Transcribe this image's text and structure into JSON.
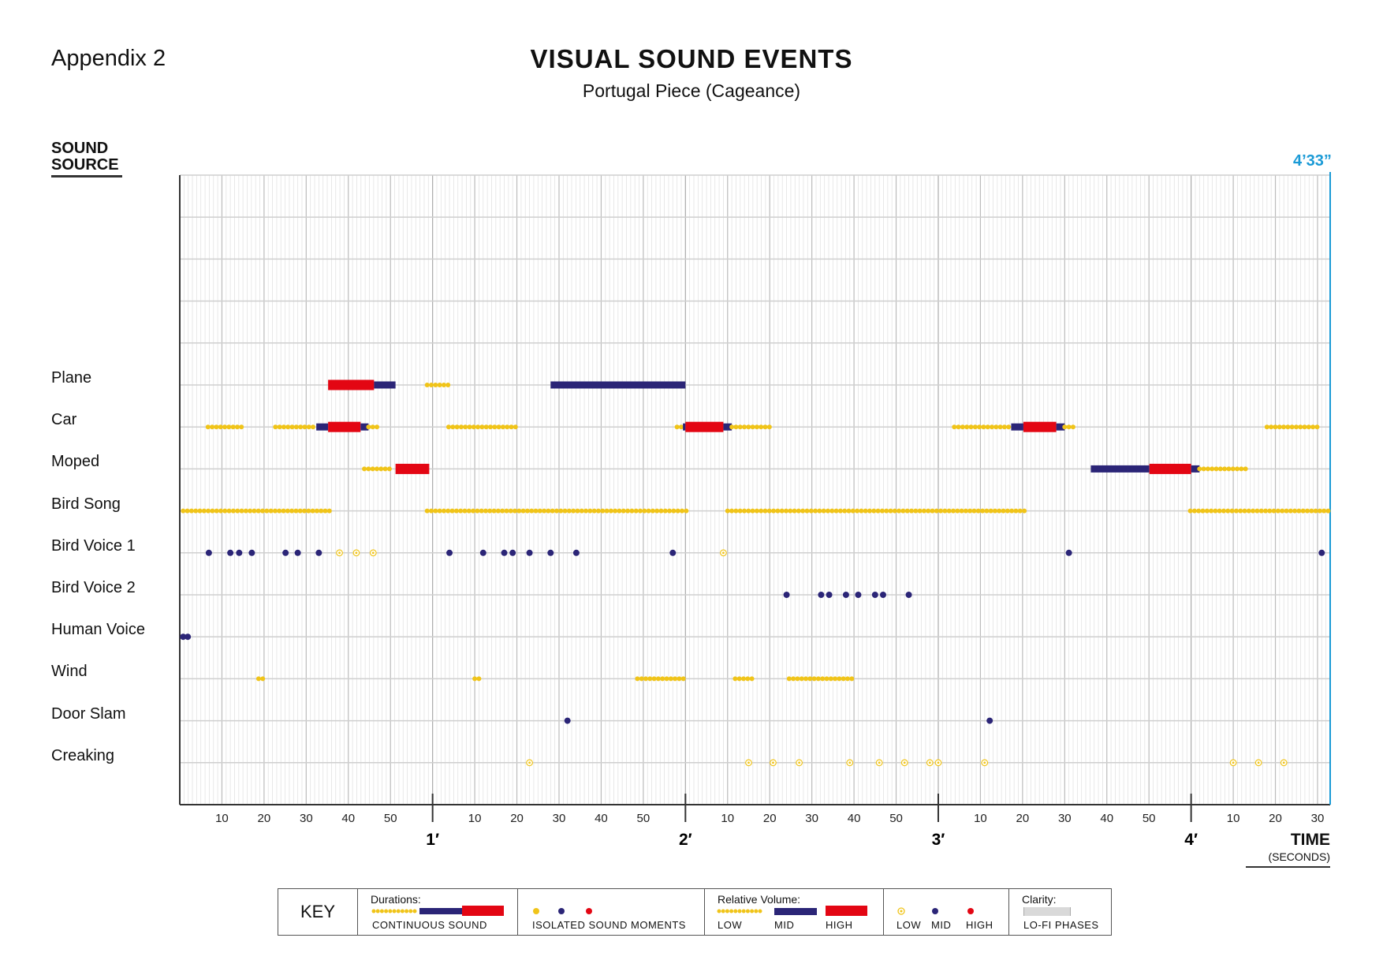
{
  "header": {
    "appendix": "Appendix 2",
    "title": "VISUAL SOUND EVENTS",
    "subtitle": "Portugal Piece (Cageance)"
  },
  "chart_data": {
    "type": "timeline",
    "ylabel": "SOUND SOURCE",
    "xlabel": "TIME",
    "xlabel_unit": "(SECONDS)",
    "end_label": "4’33”",
    "xlim": [
      0,
      273
    ],
    "grid": true,
    "colors": {
      "low": "#f0c419",
      "mid": "#2b2577",
      "high": "#e30613",
      "end": "#1a9ad6",
      "lofi": "#d9d9d9"
    },
    "second_ticks": [
      "10",
      "20",
      "30",
      "40",
      "50"
    ],
    "last_ticks": [
      "10",
      "20",
      "30"
    ],
    "minute_labels": [
      "1′",
      "2′",
      "3′",
      "4′"
    ],
    "rows": [
      {
        "name": "Plane",
        "continuous": [
          {
            "start": 35.2,
            "end": 46.1,
            "level": "high"
          },
          {
            "start": 46.1,
            "end": 51.2,
            "level": "mid"
          },
          {
            "start": 58.7,
            "end": 64.6,
            "level": "low"
          },
          {
            "start": 88,
            "end": 120,
            "level": "mid"
          }
        ],
        "isolated": []
      },
      {
        "name": "Car",
        "continuous": [
          {
            "start": 6.7,
            "end": 15.6,
            "level": "low"
          },
          {
            "start": 22.7,
            "end": 32.4,
            "level": "low"
          },
          {
            "start": 32.4,
            "end": 35.2,
            "level": "mid"
          },
          {
            "start": 35.2,
            "end": 42.9,
            "level": "high"
          },
          {
            "start": 42.9,
            "end": 44.8,
            "level": "mid"
          },
          {
            "start": 44.8,
            "end": 47.6,
            "level": "low"
          },
          {
            "start": 63.8,
            "end": 80.4,
            "level": "low"
          },
          {
            "start": 118,
            "end": 119.4,
            "level": "low"
          },
          {
            "start": 119.4,
            "end": 120,
            "level": "mid"
          },
          {
            "start": 120,
            "end": 129,
            "level": "high"
          },
          {
            "start": 129,
            "end": 131,
            "level": "mid"
          },
          {
            "start": 131,
            "end": 140.6,
            "level": "low"
          },
          {
            "start": 183.8,
            "end": 197.3,
            "level": "low"
          },
          {
            "start": 197.3,
            "end": 200.2,
            "level": "mid"
          },
          {
            "start": 200.2,
            "end": 208,
            "level": "high"
          },
          {
            "start": 208,
            "end": 210,
            "level": "mid"
          },
          {
            "start": 210,
            "end": 212.4,
            "level": "low"
          },
          {
            "start": 258,
            "end": 270.5,
            "level": "low"
          }
        ],
        "isolated": []
      },
      {
        "name": "Moped",
        "continuous": [
          {
            "start": 43.8,
            "end": 50.5,
            "level": "low"
          },
          {
            "start": 51.2,
            "end": 59.2,
            "level": "high"
          },
          {
            "start": 216.2,
            "end": 230.1,
            "level": "mid"
          },
          {
            "start": 230.1,
            "end": 240,
            "level": "high"
          },
          {
            "start": 240,
            "end": 242,
            "level": "mid"
          },
          {
            "start": 242,
            "end": 253.7,
            "level": "low"
          }
        ],
        "isolated": []
      },
      {
        "name": "Bird Song",
        "continuous": [
          {
            "start": 0.8,
            "end": 35.6,
            "level": "low"
          },
          {
            "start": 58.7,
            "end": 120.4,
            "level": "low"
          },
          {
            "start": 130,
            "end": 200.6,
            "level": "low"
          },
          {
            "start": 239.8,
            "end": 272.6,
            "level": "low"
          }
        ],
        "isolated": []
      },
      {
        "name": "Bird Voice 1",
        "continuous": [],
        "isolated": [
          {
            "t": 6.9,
            "level": "mid"
          },
          {
            "t": 12,
            "level": "mid"
          },
          {
            "t": 14.1,
            "level": "mid"
          },
          {
            "t": 17.1,
            "level": "mid"
          },
          {
            "t": 25.1,
            "level": "mid"
          },
          {
            "t": 28,
            "level": "mid"
          },
          {
            "t": 33,
            "level": "mid"
          },
          {
            "t": 37.9,
            "level": "low"
          },
          {
            "t": 41.9,
            "level": "low"
          },
          {
            "t": 45.9,
            "level": "low"
          },
          {
            "t": 64,
            "level": "mid"
          },
          {
            "t": 72,
            "level": "mid"
          },
          {
            "t": 77,
            "level": "mid"
          },
          {
            "t": 79,
            "level": "mid"
          },
          {
            "t": 83,
            "level": "mid"
          },
          {
            "t": 88,
            "level": "mid"
          },
          {
            "t": 94.1,
            "level": "mid"
          },
          {
            "t": 117,
            "level": "mid"
          },
          {
            "t": 129,
            "level": "low"
          },
          {
            "t": 211,
            "level": "mid"
          },
          {
            "t": 271,
            "level": "mid"
          }
        ]
      },
      {
        "name": "Bird Voice 2",
        "continuous": [],
        "isolated": [
          {
            "t": 144,
            "level": "mid"
          },
          {
            "t": 152.2,
            "level": "mid"
          },
          {
            "t": 154.1,
            "level": "mid"
          },
          {
            "t": 158.1,
            "level": "mid"
          },
          {
            "t": 161,
            "level": "mid"
          },
          {
            "t": 165,
            "level": "mid"
          },
          {
            "t": 166.9,
            "level": "mid"
          },
          {
            "t": 173,
            "level": "mid"
          }
        ]
      },
      {
        "name": "Human Voice",
        "continuous": [],
        "isolated": [
          {
            "t": 0.8,
            "level": "mid"
          },
          {
            "t": 1.9,
            "level": "mid"
          }
        ]
      },
      {
        "name": "Wind",
        "continuous": [
          {
            "start": 18.7,
            "end": 20.2,
            "level": "low"
          },
          {
            "start": 70,
            "end": 71.2,
            "level": "low"
          },
          {
            "start": 108.6,
            "end": 120.4,
            "level": "low"
          },
          {
            "start": 131.8,
            "end": 136.6,
            "level": "low"
          },
          {
            "start": 144.6,
            "end": 160.2,
            "level": "low"
          }
        ],
        "isolated": []
      },
      {
        "name": "Door Slam",
        "continuous": [],
        "isolated": [
          {
            "t": 92,
            "level": "mid"
          },
          {
            "t": 192.2,
            "level": "mid"
          }
        ]
      },
      {
        "name": "Creaking",
        "continuous": [],
        "isolated": [
          {
            "t": 83,
            "level": "low"
          },
          {
            "t": 135,
            "level": "low"
          },
          {
            "t": 140.8,
            "level": "low"
          },
          {
            "t": 147,
            "level": "low"
          },
          {
            "t": 159,
            "level": "low"
          },
          {
            "t": 166,
            "level": "low"
          },
          {
            "t": 172,
            "level": "low"
          },
          {
            "t": 178,
            "level": "low"
          },
          {
            "t": 180,
            "level": "low"
          },
          {
            "t": 191,
            "level": "low"
          },
          {
            "t": 250,
            "level": "low"
          },
          {
            "t": 256,
            "level": "low"
          },
          {
            "t": 262,
            "level": "low"
          }
        ]
      }
    ]
  },
  "key": {
    "title": "KEY",
    "durations_label": "Durations:",
    "continuous_label": "CONTINUOUS SOUND",
    "isolated_label": "ISOLATED SOUND MOMENTS",
    "volume_label": "Relative Volume:",
    "low": "LOW",
    "mid": "MID",
    "high": "HIGH",
    "clarity_label": "Clarity:",
    "lofi_label": "LO-FI PHASES"
  }
}
